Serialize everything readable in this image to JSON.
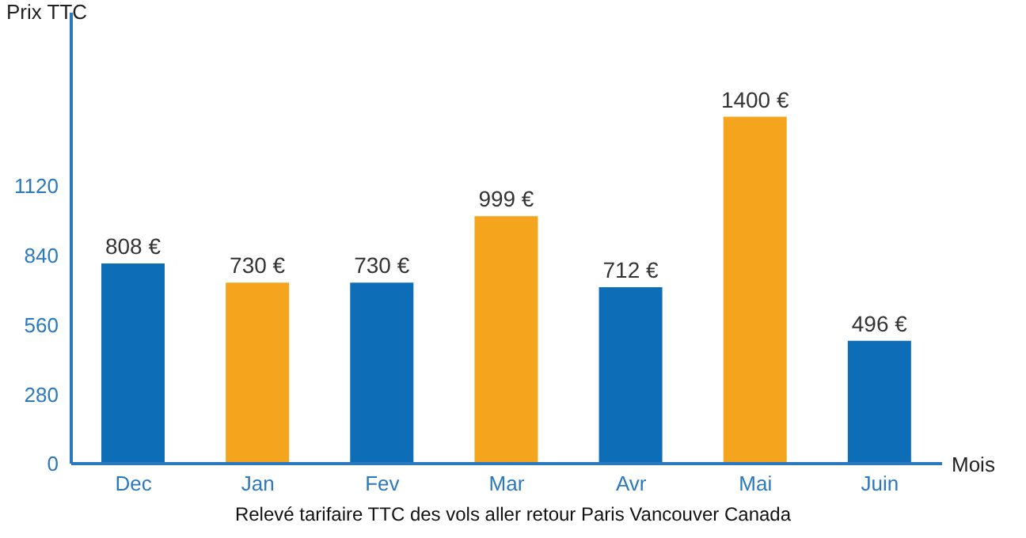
{
  "chart_data": {
    "type": "bar",
    "title": "Relevé tarifaire TTC des vols aller retour Paris Vancouver Canada",
    "xlabel": "Mois",
    "ylabel": "Prix TTC",
    "categories": [
      "Dec",
      "Jan",
      "Fev",
      "Mar",
      "Avr",
      "Mai",
      "Juin"
    ],
    "values": [
      808,
      730,
      730,
      999,
      712,
      1400,
      496
    ],
    "colors": [
      "#0d6db7",
      "#f5a51d",
      "#0d6db7",
      "#f5a51d",
      "#0d6db7",
      "#f5a51d",
      "#0d6db7"
    ],
    "value_labels": [
      "808 €",
      "730 €",
      "730 €",
      "999 €",
      "712 €",
      "1400 €",
      "496 €"
    ],
    "ylim": [
      0,
      1820
    ],
    "yticks": [
      0,
      280,
      560,
      840,
      1120
    ]
  }
}
